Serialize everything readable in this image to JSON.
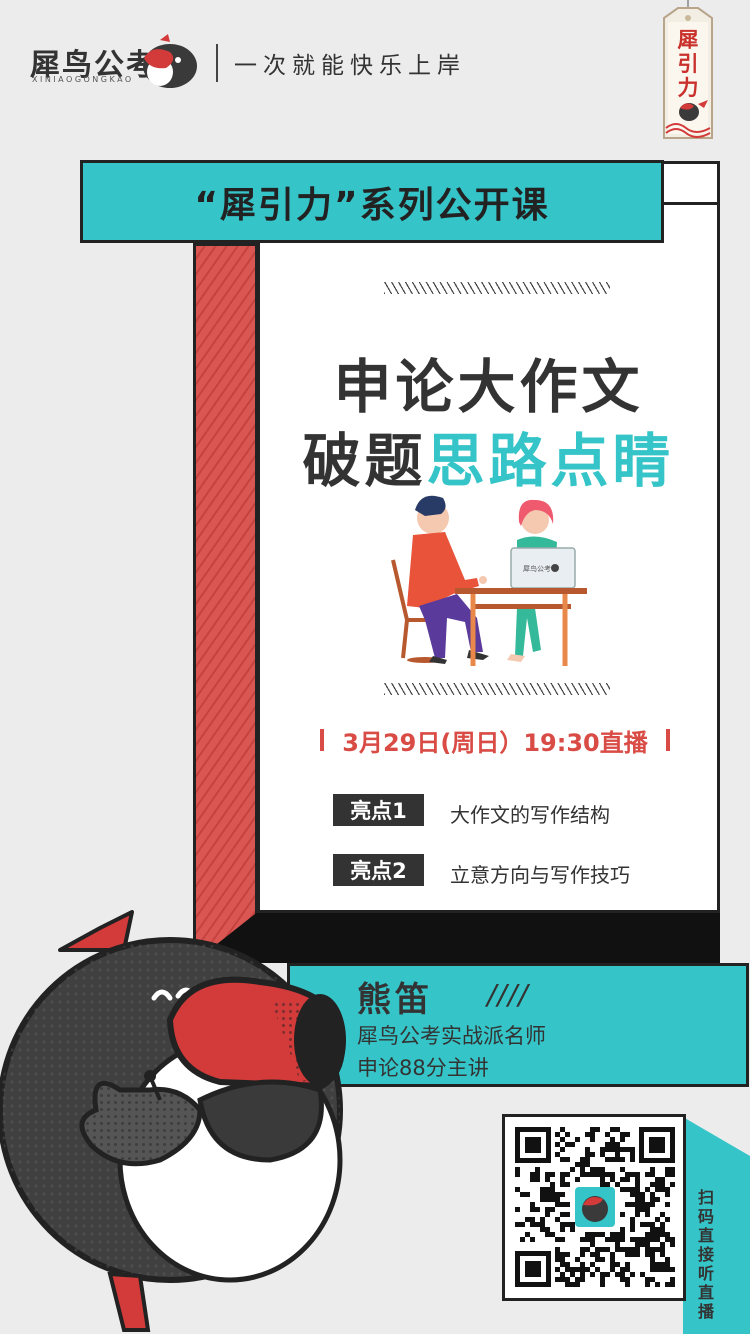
{
  "header": {
    "logo_text": "犀鸟公考",
    "logo_sub": "XINIAOGONGKAO",
    "slogan": "一次就能快乐上岸",
    "tag_text": "犀引力"
  },
  "title_bar": "“犀引力”系列公开课",
  "main": {
    "title_line1": "申论大作文",
    "title_line2_dark": "破题",
    "title_line2_cyan": "思路点睛",
    "laptop_label": "犀鸟公考",
    "date": "3月29日(周日）19:30直播",
    "highlights": [
      {
        "tag": "亮点1",
        "text": "大作文的写作结构"
      },
      {
        "tag": "亮点2",
        "text": "立意方向与写作技巧"
      }
    ]
  },
  "teacher": {
    "name": "熊笛",
    "slashes": "////",
    "line1": "犀鸟公考实战派名师",
    "line2": "申论88分主讲"
  },
  "qr": {
    "caption": "扫码直接听直播"
  },
  "colors": {
    "accent_cyan": "#35c4c8",
    "accent_red": "#d94b45",
    "dark": "#333333",
    "background": "#ececec"
  }
}
